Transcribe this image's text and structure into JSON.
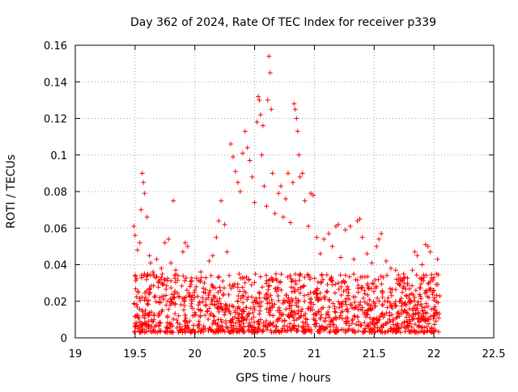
{
  "chart_data": {
    "type": "scatter",
    "title": "Day 362 of 2024, Rate Of TEC Index for receiver p339",
    "xlabel": "GPS time / hours",
    "ylabel": "ROTI / TECUs",
    "xlim": [
      19,
      22.5
    ],
    "ylim": [
      0,
      0.16
    ],
    "grid": true,
    "x_ticks": [
      19,
      19.5,
      20,
      20.5,
      21,
      21.5,
      22,
      22.5
    ],
    "x_tick_labels": [
      "19",
      "19.5",
      "20",
      "20.5",
      "21",
      "21.5",
      "22",
      "22.5"
    ],
    "y_ticks": [
      0,
      0.02,
      0.04,
      0.06,
      0.08,
      0.1,
      0.12,
      0.14,
      0.16
    ],
    "y_tick_labels": [
      "0",
      "0.02",
      "0.04",
      "0.06",
      "0.08",
      "0.1",
      "0.12",
      "0.14",
      "0.16"
    ],
    "marker": "+",
    "color": "#ff0000",
    "series": [
      {
        "name": "ROTI",
        "points": [
          [
            19.49,
            0.061
          ],
          [
            19.5,
            0.056
          ],
          [
            19.52,
            0.048
          ],
          [
            19.54,
            0.052
          ],
          [
            19.56,
            0.09
          ],
          [
            19.57,
            0.085
          ],
          [
            19.58,
            0.079
          ],
          [
            19.55,
            0.07
          ],
          [
            19.6,
            0.066
          ],
          [
            19.62,
            0.045
          ],
          [
            19.63,
            0.041
          ],
          [
            19.65,
            0.036
          ],
          [
            19.68,
            0.043
          ],
          [
            19.7,
            0.031
          ],
          [
            19.72,
            0.038
          ],
          [
            19.75,
            0.052
          ],
          [
            19.78,
            0.054
          ],
          [
            19.8,
            0.041
          ],
          [
            19.82,
            0.075
          ],
          [
            19.84,
            0.037
          ],
          [
            19.86,
            0.034
          ],
          [
            19.9,
            0.047
          ],
          [
            19.92,
            0.052
          ],
          [
            19.94,
            0.05
          ],
          [
            19.96,
            0.028
          ],
          [
            20.0,
            0.026
          ],
          [
            20.05,
            0.036
          ],
          [
            20.08,
            0.03
          ],
          [
            20.12,
            0.042
          ],
          [
            20.15,
            0.045
          ],
          [
            20.18,
            0.055
          ],
          [
            20.2,
            0.064
          ],
          [
            20.22,
            0.075
          ],
          [
            20.25,
            0.062
          ],
          [
            20.27,
            0.047
          ],
          [
            20.3,
            0.106
          ],
          [
            20.32,
            0.099
          ],
          [
            20.34,
            0.091
          ],
          [
            20.36,
            0.085
          ],
          [
            20.38,
            0.08
          ],
          [
            20.4,
            0.101
          ],
          [
            20.42,
            0.113
          ],
          [
            20.44,
            0.104
          ],
          [
            20.46,
            0.097
          ],
          [
            20.48,
            0.088
          ],
          [
            20.5,
            0.074
          ],
          [
            20.52,
            0.118
          ],
          [
            20.53,
            0.132
          ],
          [
            20.54,
            0.13
          ],
          [
            20.55,
            0.122
          ],
          [
            20.56,
            0.1
          ],
          [
            20.57,
            0.116
          ],
          [
            20.58,
            0.083
          ],
          [
            20.6,
            0.072
          ],
          [
            20.61,
            0.13
          ],
          [
            20.62,
            0.154
          ],
          [
            20.63,
            0.145
          ],
          [
            20.64,
            0.125
          ],
          [
            20.65,
            0.09
          ],
          [
            20.67,
            0.068
          ],
          [
            20.7,
            0.079
          ],
          [
            20.72,
            0.083
          ],
          [
            20.74,
            0.066
          ],
          [
            20.76,
            0.076
          ],
          [
            20.78,
            0.09
          ],
          [
            20.8,
            0.063
          ],
          [
            20.82,
            0.085
          ],
          [
            20.83,
            0.128
          ],
          [
            20.84,
            0.125
          ],
          [
            20.85,
            0.12
          ],
          [
            20.86,
            0.113
          ],
          [
            20.87,
            0.1
          ],
          [
            20.88,
            0.088
          ],
          [
            20.9,
            0.09
          ],
          [
            20.92,
            0.075
          ],
          [
            20.95,
            0.061
          ],
          [
            20.97,
            0.079
          ],
          [
            20.99,
            0.078
          ],
          [
            21.02,
            0.055
          ],
          [
            21.05,
            0.046
          ],
          [
            21.08,
            0.054
          ],
          [
            21.12,
            0.057
          ],
          [
            21.15,
            0.05
          ],
          [
            21.18,
            0.061
          ],
          [
            21.2,
            0.062
          ],
          [
            21.22,
            0.044
          ],
          [
            21.26,
            0.059
          ],
          [
            21.3,
            0.061
          ],
          [
            21.33,
            0.043
          ],
          [
            21.36,
            0.064
          ],
          [
            21.38,
            0.065
          ],
          [
            21.4,
            0.055
          ],
          [
            21.44,
            0.046
          ],
          [
            21.48,
            0.041
          ],
          [
            21.52,
            0.05
          ],
          [
            21.54,
            0.054
          ],
          [
            21.56,
            0.057
          ],
          [
            21.6,
            0.042
          ],
          [
            21.64,
            0.038
          ],
          [
            21.68,
            0.037
          ],
          [
            21.72,
            0.031
          ],
          [
            21.75,
            0.03
          ],
          [
            21.78,
            0.029
          ],
          [
            21.82,
            0.037
          ],
          [
            21.84,
            0.047
          ],
          [
            21.86,
            0.045
          ],
          [
            21.9,
            0.04
          ],
          [
            21.93,
            0.051
          ],
          [
            21.95,
            0.05
          ],
          [
            21.97,
            0.047
          ],
          [
            22.0,
            0.033
          ],
          [
            22.02,
            0.035
          ],
          [
            22.03,
            0.043
          ]
        ],
        "note": "Dense band of points between 0.003 and 0.035 ROTI spans 19.49–22.05 h"
      }
    ],
    "dense_band": {
      "x_range": [
        19.49,
        22.05
      ],
      "y_range": [
        0.003,
        0.035
      ],
      "count": 1400
    }
  }
}
